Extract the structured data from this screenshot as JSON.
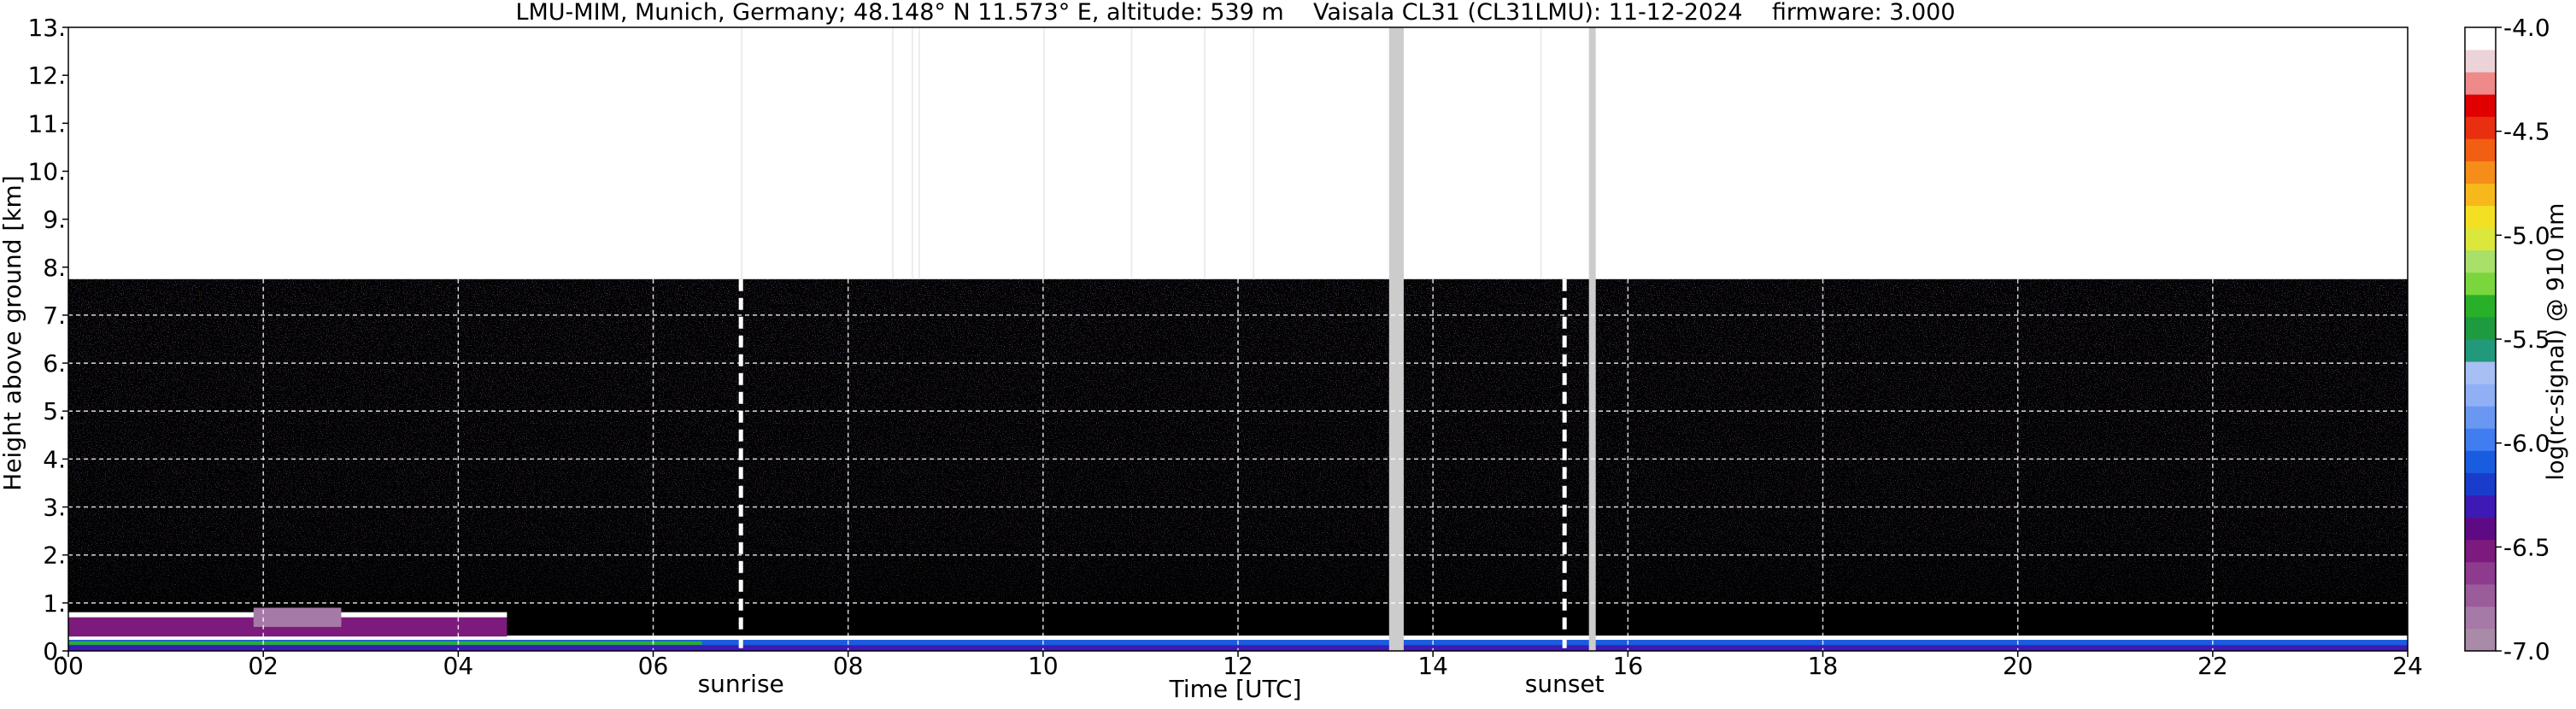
{
  "chart_data": {
    "type": "heatmap",
    "title": "LMU-MIM, Munich, Germany; 48.148° N 11.573° E, altitude: 539 m    Vaisala CL31 (CL31LMU): 11-12-2024    firmware: 3.000",
    "xlabel": "Time [UTC]",
    "ylabel": "Height above ground [km]",
    "colorbar_label": "log(rc-signal) @ 910 nm",
    "xlim": [
      0,
      24
    ],
    "ylim": [
      0,
      13
    ],
    "x_ticks": [
      0,
      2,
      4,
      6,
      8,
      10,
      12,
      14,
      16,
      18,
      20,
      22,
      24
    ],
    "x_tick_labels": [
      "00",
      "02",
      "04",
      "06",
      "08",
      "10",
      "12",
      "14",
      "16",
      "18",
      "20",
      "22",
      "24"
    ],
    "y_ticks": [
      0,
      1,
      2,
      3,
      4,
      5,
      6,
      7,
      8,
      9,
      10,
      11,
      12,
      13
    ],
    "y_tick_labels": [
      "0.",
      "1.",
      "2.",
      "3.",
      "4.",
      "5.",
      "6.",
      "7.",
      "8.",
      "9.",
      "10.",
      "11.",
      "12.",
      "13."
    ],
    "grid": true,
    "colorbar_range": [
      -7.0,
      -4.0
    ],
    "colorbar_ticks": [
      -7.0,
      -6.5,
      -6.0,
      -5.5,
      -5.0,
      -4.5,
      -4.0
    ],
    "colorbar_tick_labels": [
      "-7.0",
      "-6.5",
      "-6.0",
      "-5.5",
      "-5.0",
      "-4.5",
      "-4.0"
    ],
    "colorbar_colors": [
      "#a98ba9",
      "#a67aa6",
      "#9a5c9a",
      "#8e3a8e",
      "#7d1a7d",
      "#5f0a85",
      "#3d1ab5",
      "#1a3ccc",
      "#1a5ce0",
      "#3f7df0",
      "#6a97f2",
      "#8fb0f4",
      "#a7bff5",
      "#22997a",
      "#1e9a40",
      "#28b028",
      "#7bd63d",
      "#a8e06a",
      "#dbe73a",
      "#f4e022",
      "#f7b81c",
      "#f58d18",
      "#f25f12",
      "#e83010",
      "#e00000",
      "#ee8a8a",
      "#ecd3d8",
      "#ffffff"
    ],
    "data_max_height_km": 7.75,
    "boundary_layer_top_km": 0.3,
    "night_aerosol_top_km": 0.7,
    "markers": [
      {
        "label": "sunrise",
        "time_utc": 6.9
      },
      {
        "label": "sunset",
        "time_utc": 15.35
      }
    ],
    "data_gaps_utc": [
      [
        13.55,
        13.7
      ],
      [
        15.6,
        15.67
      ]
    ],
    "bg_color": "#000000",
    "grid_color": "#ffffff"
  }
}
